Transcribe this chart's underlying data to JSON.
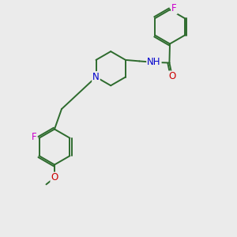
{
  "background_color": "#ebebeb",
  "bond_color": "#2d6b2d",
  "atom_colors": {
    "N": "#0000cc",
    "O": "#cc0000",
    "F": "#cc00cc",
    "C": "#2d6b2d"
  },
  "bond_lw": 1.4,
  "font_size": 8.5,
  "fig_width": 3.0,
  "fig_height": 3.0,
  "dpi": 100
}
